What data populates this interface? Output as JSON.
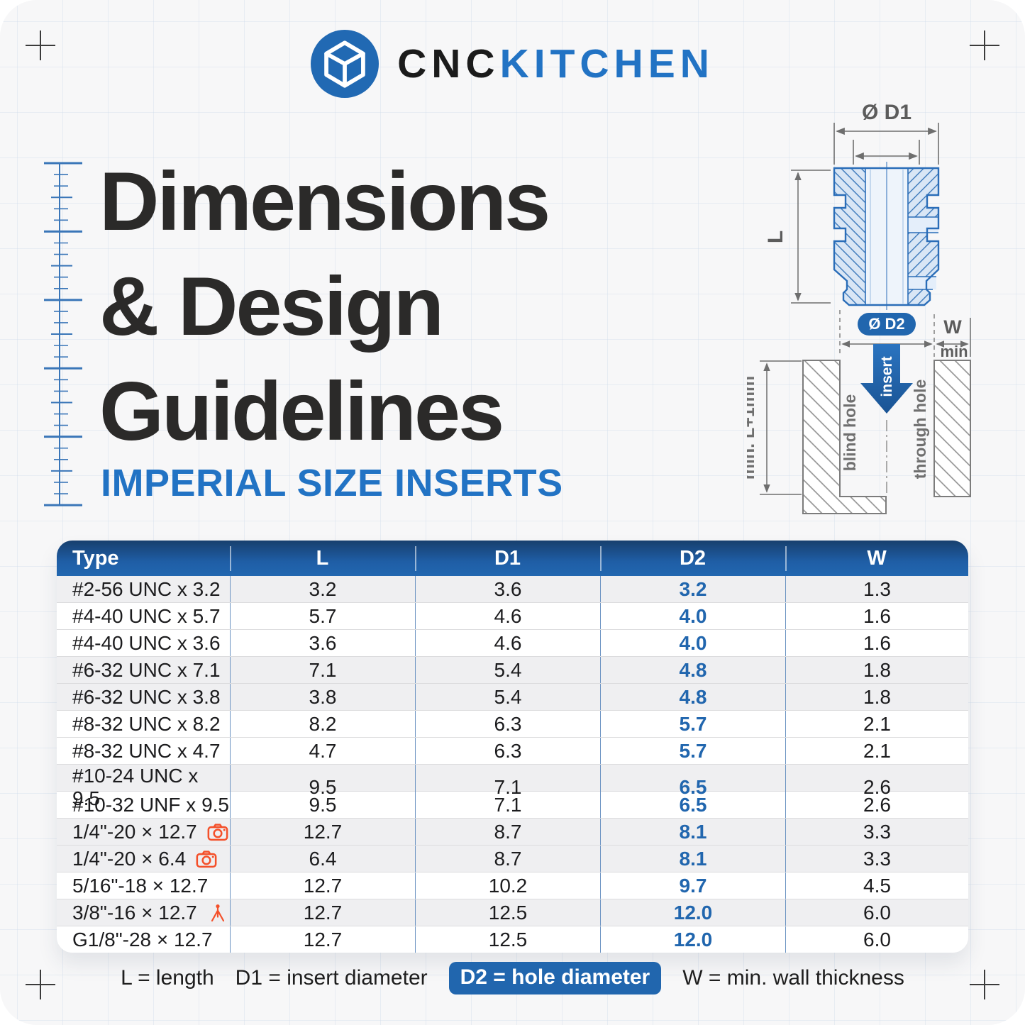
{
  "brand": {
    "primary": "CNC",
    "secondary": "KITCHEN",
    "mark": "cnc-cube-logo",
    "accent_color": "#2273c4"
  },
  "title": {
    "line1": "Dimensions",
    "line2": "& Design",
    "line3": "Guidelines",
    "subtitle": "IMPERIAL SIZE INSERTS"
  },
  "diagram": {
    "d1_label": "Ø D1",
    "l_label": "L",
    "d2_label": "Ø D2",
    "w_label": "W",
    "min_label": "min",
    "insert_label": "insert",
    "blind_hole_label": "blind hole",
    "through_hole_label": "through hole",
    "depth_label": "min. L+1mm"
  },
  "table": {
    "columns": [
      "Type",
      "L",
      "D1",
      "D2",
      "W"
    ],
    "rows": [
      {
        "type": "#2-56 UNC x 3.2",
        "l": "3.2",
        "d1": "3.6",
        "d2": "3.2",
        "w": "1.3",
        "icon": null,
        "shaded": true
      },
      {
        "type": "#4-40 UNC x 5.7",
        "l": "5.7",
        "d1": "4.6",
        "d2": "4.0",
        "w": "1.6",
        "icon": null,
        "shaded": false
      },
      {
        "type": "#4-40 UNC x 3.6",
        "l": "3.6",
        "d1": "4.6",
        "d2": "4.0",
        "w": "1.6",
        "icon": null,
        "shaded": false
      },
      {
        "type": "#6-32 UNC x 7.1",
        "l": "7.1",
        "d1": "5.4",
        "d2": "4.8",
        "w": "1.8",
        "icon": null,
        "shaded": true
      },
      {
        "type": "#6-32 UNC x 3.8",
        "l": "3.8",
        "d1": "5.4",
        "d2": "4.8",
        "w": "1.8",
        "icon": null,
        "shaded": true
      },
      {
        "type": "#8-32 UNC x 8.2",
        "l": "8.2",
        "d1": "6.3",
        "d2": "5.7",
        "w": "2.1",
        "icon": null,
        "shaded": false
      },
      {
        "type": "#8-32 UNC x 4.7",
        "l": "4.7",
        "d1": "6.3",
        "d2": "5.7",
        "w": "2.1",
        "icon": null,
        "shaded": false
      },
      {
        "type": "#10-24 UNC x 9.5",
        "l": "9.5",
        "d1": "7.1",
        "d2": "6.5",
        "w": "2.6",
        "icon": null,
        "shaded": true
      },
      {
        "type": "#10-32 UNF x 9.5",
        "l": "9.5",
        "d1": "7.1",
        "d2": "6.5",
        "w": "2.6",
        "icon": null,
        "shaded": false
      },
      {
        "type": "1/4\"-20 × 12.7",
        "l": "12.7",
        "d1": "8.7",
        "d2": "8.1",
        "w": "3.3",
        "icon": "camera",
        "shaded": true
      },
      {
        "type": "1/4\"-20 × 6.4",
        "l": "6.4",
        "d1": "8.7",
        "d2": "8.1",
        "w": "3.3",
        "icon": "camera",
        "shaded": true
      },
      {
        "type": "5/16\"-18 × 12.7",
        "l": "12.7",
        "d1": "10.2",
        "d2": "9.7",
        "w": "4.5",
        "icon": null,
        "shaded": false
      },
      {
        "type": "3/8\"-16 × 12.7",
        "l": "12.7",
        "d1": "12.5",
        "d2": "12.0",
        "w": "6.0",
        "icon": "tripod",
        "shaded": true
      },
      {
        "type": "G1/8\"-28 × 12.7",
        "l": "12.7",
        "d1": "12.5",
        "d2": "12.0",
        "w": "6.0",
        "icon": null,
        "shaded": false
      }
    ]
  },
  "legend": {
    "items": [
      {
        "text": "L = length",
        "pill": false
      },
      {
        "text": "D1 = insert diameter",
        "pill": false
      },
      {
        "text": "D2 = hole diameter",
        "pill": true
      },
      {
        "text": "W = min. wall thickness",
        "pill": false
      }
    ]
  },
  "colors": {
    "background": "#f7f7f8",
    "accent_blue": "#2273c4",
    "table_header_blue": "#2166ae",
    "d2_value_blue": "#2166ae",
    "icon_orange": "#f4502a",
    "title_dark": "#2b2a29",
    "drawing_blue": "#2a6db8"
  }
}
